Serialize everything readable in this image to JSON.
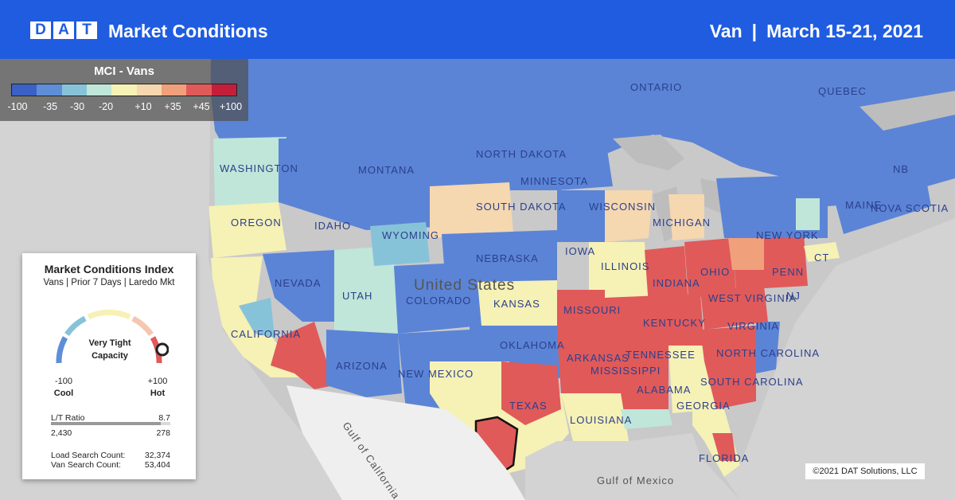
{
  "header": {
    "logo_letters": [
      "D",
      "A",
      "T"
    ],
    "title": "Market Conditions",
    "equipment": "Van",
    "separator": "|",
    "date_range": "March 15-21, 2021"
  },
  "legend": {
    "title": "MCI - Vans",
    "colors": [
      "#3b61c4",
      "#5f8ed8",
      "#87c3d8",
      "#bfe6d9",
      "#f6f1b5",
      "#f5d7b0",
      "#f0a07a",
      "#e05a5a",
      "#c41e3a"
    ],
    "ticks": [
      "-100",
      "-35",
      "-30",
      "-20",
      "+10",
      "+35",
      "+45",
      "+100"
    ]
  },
  "map_labels": {
    "ontario": "ONTARIO",
    "quebec": "QUEBEC",
    "washington": "WASHINGTON",
    "montana": "MONTANA",
    "north_dakota": "NORTH DAKOTA",
    "minnesota": "MINNESOTA",
    "nb": "NB",
    "maine": "MAINE",
    "nova_scotia": "NOVA SCOTIA",
    "oregon": "OREGON",
    "idaho": "IDAHO",
    "south_dakota": "SOUTH DAKOTA",
    "wisconsin": "WISCONSIN",
    "michigan": "MICHIGAN",
    "wyoming": "WYOMING",
    "new_york": "NEW YORK",
    "iowa": "IOWA",
    "nebraska": "NEBRASKA",
    "illinois": "ILLINOIS",
    "indiana": "INDIANA",
    "ohio": "OHIO",
    "penn": "PENN",
    "nevada": "NEVADA",
    "utah": "UTAH",
    "colorado": "COLORADO",
    "kansas": "KANSAS",
    "united_states": "United States",
    "missouri": "MISSOURI",
    "west_virginia": "WEST VIRGINIA",
    "virginia": "VIRGINIA",
    "kentucky": "KENTUCKY",
    "nj": "NJ",
    "ct": "CT",
    "california": "CALIFORNIA",
    "oklahoma": "OKLAHOMA",
    "arkansas": "ARKANSAS",
    "tennessee": "TENNESSEE",
    "north_carolina": "NORTH CAROLINA",
    "arizona": "ARIZONA",
    "new_mexico": "NEW MEXICO",
    "mississippi": "MISSISSIPPI",
    "alabama": "ALABAMA",
    "georgia": "GEORGIA",
    "south_carolina": "SOUTH CAROLINA",
    "texas": "TEXAS",
    "louisiana": "LOUISIANA",
    "florida": "FLORIDA",
    "gulf_of_california": "Gulf of California",
    "gulf_of_mexico": "Gulf of Mexico"
  },
  "panel": {
    "title": "Market Conditions Index",
    "subtitle": "Vans | Prior 7 Days | Laredo Mkt",
    "gauge_label_line1": "Very Tight",
    "gauge_label_line2": "Capacity",
    "gauge_value": 100,
    "min_value": "-100",
    "min_label": "Cool",
    "max_value": "+100",
    "max_label": "Hot",
    "lt_ratio_label": "L/T Ratio",
    "lt_ratio_value": "8.7",
    "loads_value": "2,430",
    "trucks_value": "278",
    "load_search_label": "Load Search Count:",
    "load_search_value": "32,374",
    "van_search_label": "Van Search Count:",
    "van_search_value": "53,404"
  },
  "copyright": "©2021 DAT Solutions, LLC"
}
